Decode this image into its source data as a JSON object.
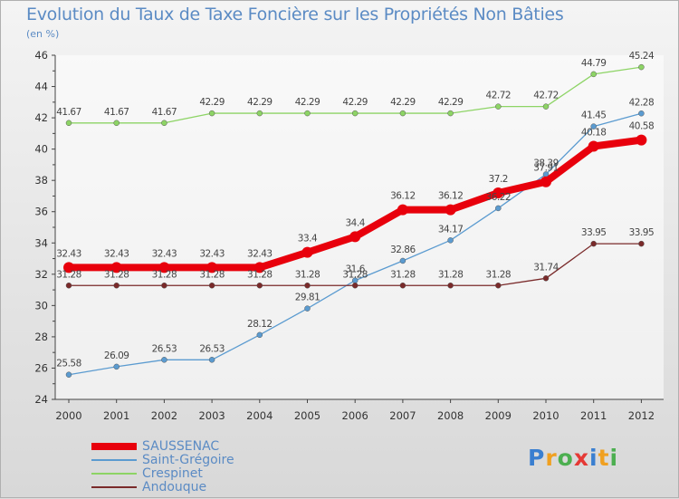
{
  "header": {
    "title": "Evolution du Taux de Taxe Foncière sur les Propriétés Non Bâties",
    "unit": "(en %)"
  },
  "chart_data": {
    "type": "line",
    "x": [
      "2000",
      "2001",
      "2002",
      "2003",
      "2004",
      "2005",
      "2006",
      "2007",
      "2008",
      "2009",
      "2010",
      "2011",
      "2012"
    ],
    "ylim": [
      24,
      46
    ],
    "yticks": [
      24,
      26,
      28,
      30,
      32,
      34,
      36,
      38,
      40,
      42,
      44,
      46
    ],
    "grid": false,
    "legend_position": "bottom-left",
    "series": [
      {
        "name": "SAUSSENAC",
        "color": "#e8000c",
        "values": [
          32.43,
          32.43,
          32.43,
          32.43,
          32.43,
          33.4,
          34.4,
          36.12,
          36.12,
          37.2,
          37.91,
          40.18,
          40.58
        ],
        "labels": [
          "32.43",
          "32.43",
          "32.43",
          "32.43",
          "32.43",
          "33.4",
          "34.4",
          "36.12",
          "36.12",
          "37.2",
          "37.91",
          "40.18",
          "40.58"
        ]
      },
      {
        "name": "Saint-Grégoire",
        "color": "#5b9bd0",
        "values": [
          25.58,
          26.09,
          26.53,
          26.53,
          28.12,
          29.81,
          31.6,
          32.86,
          34.17,
          36.22,
          38.39,
          41.45,
          42.28
        ],
        "labels": [
          "25.58",
          "26.09",
          "26.53",
          "26.53",
          "28.12",
          "29.81",
          "31.6",
          "32.86",
          "34.17",
          "36.22",
          "38.39",
          "41.45",
          "42.28"
        ]
      },
      {
        "name": "Crespinet",
        "color": "#8dd465",
        "values": [
          41.67,
          41.67,
          41.67,
          42.29,
          42.29,
          42.29,
          42.29,
          42.29,
          42.29,
          42.72,
          42.72,
          44.79,
          45.24
        ],
        "labels": [
          "41.67",
          "41.67",
          "41.67",
          "42.29",
          "42.29",
          "42.29",
          "42.29",
          "42.29",
          "42.29",
          "42.72",
          "42.72",
          "44.79",
          "45.24"
        ]
      },
      {
        "name": "Andouque",
        "color": "#7a2a2a",
        "values": [
          31.28,
          31.28,
          31.28,
          31.28,
          31.28,
          31.28,
          31.28,
          31.28,
          31.28,
          31.28,
          31.74,
          33.95,
          33.95
        ],
        "labels": [
          "31.28",
          "31.28",
          "31.28",
          "31.28",
          "31.28",
          "31.28",
          "31.28",
          "31.28",
          "31.28",
          "31.28",
          "31.74",
          "33.95",
          "33.95"
        ]
      }
    ]
  },
  "logo": {
    "text": "Proxiti",
    "letters": [
      {
        "ch": "P",
        "color": "#3a7fd0"
      },
      {
        "ch": "r",
        "color": "#f0a020"
      },
      {
        "ch": "o",
        "color": "#4caf50"
      },
      {
        "ch": "x",
        "color": "#e53935"
      },
      {
        "ch": "i",
        "color": "#3a7fd0"
      },
      {
        "ch": "t",
        "color": "#f0a020"
      },
      {
        "ch": "i",
        "color": "#4caf50"
      }
    ]
  }
}
